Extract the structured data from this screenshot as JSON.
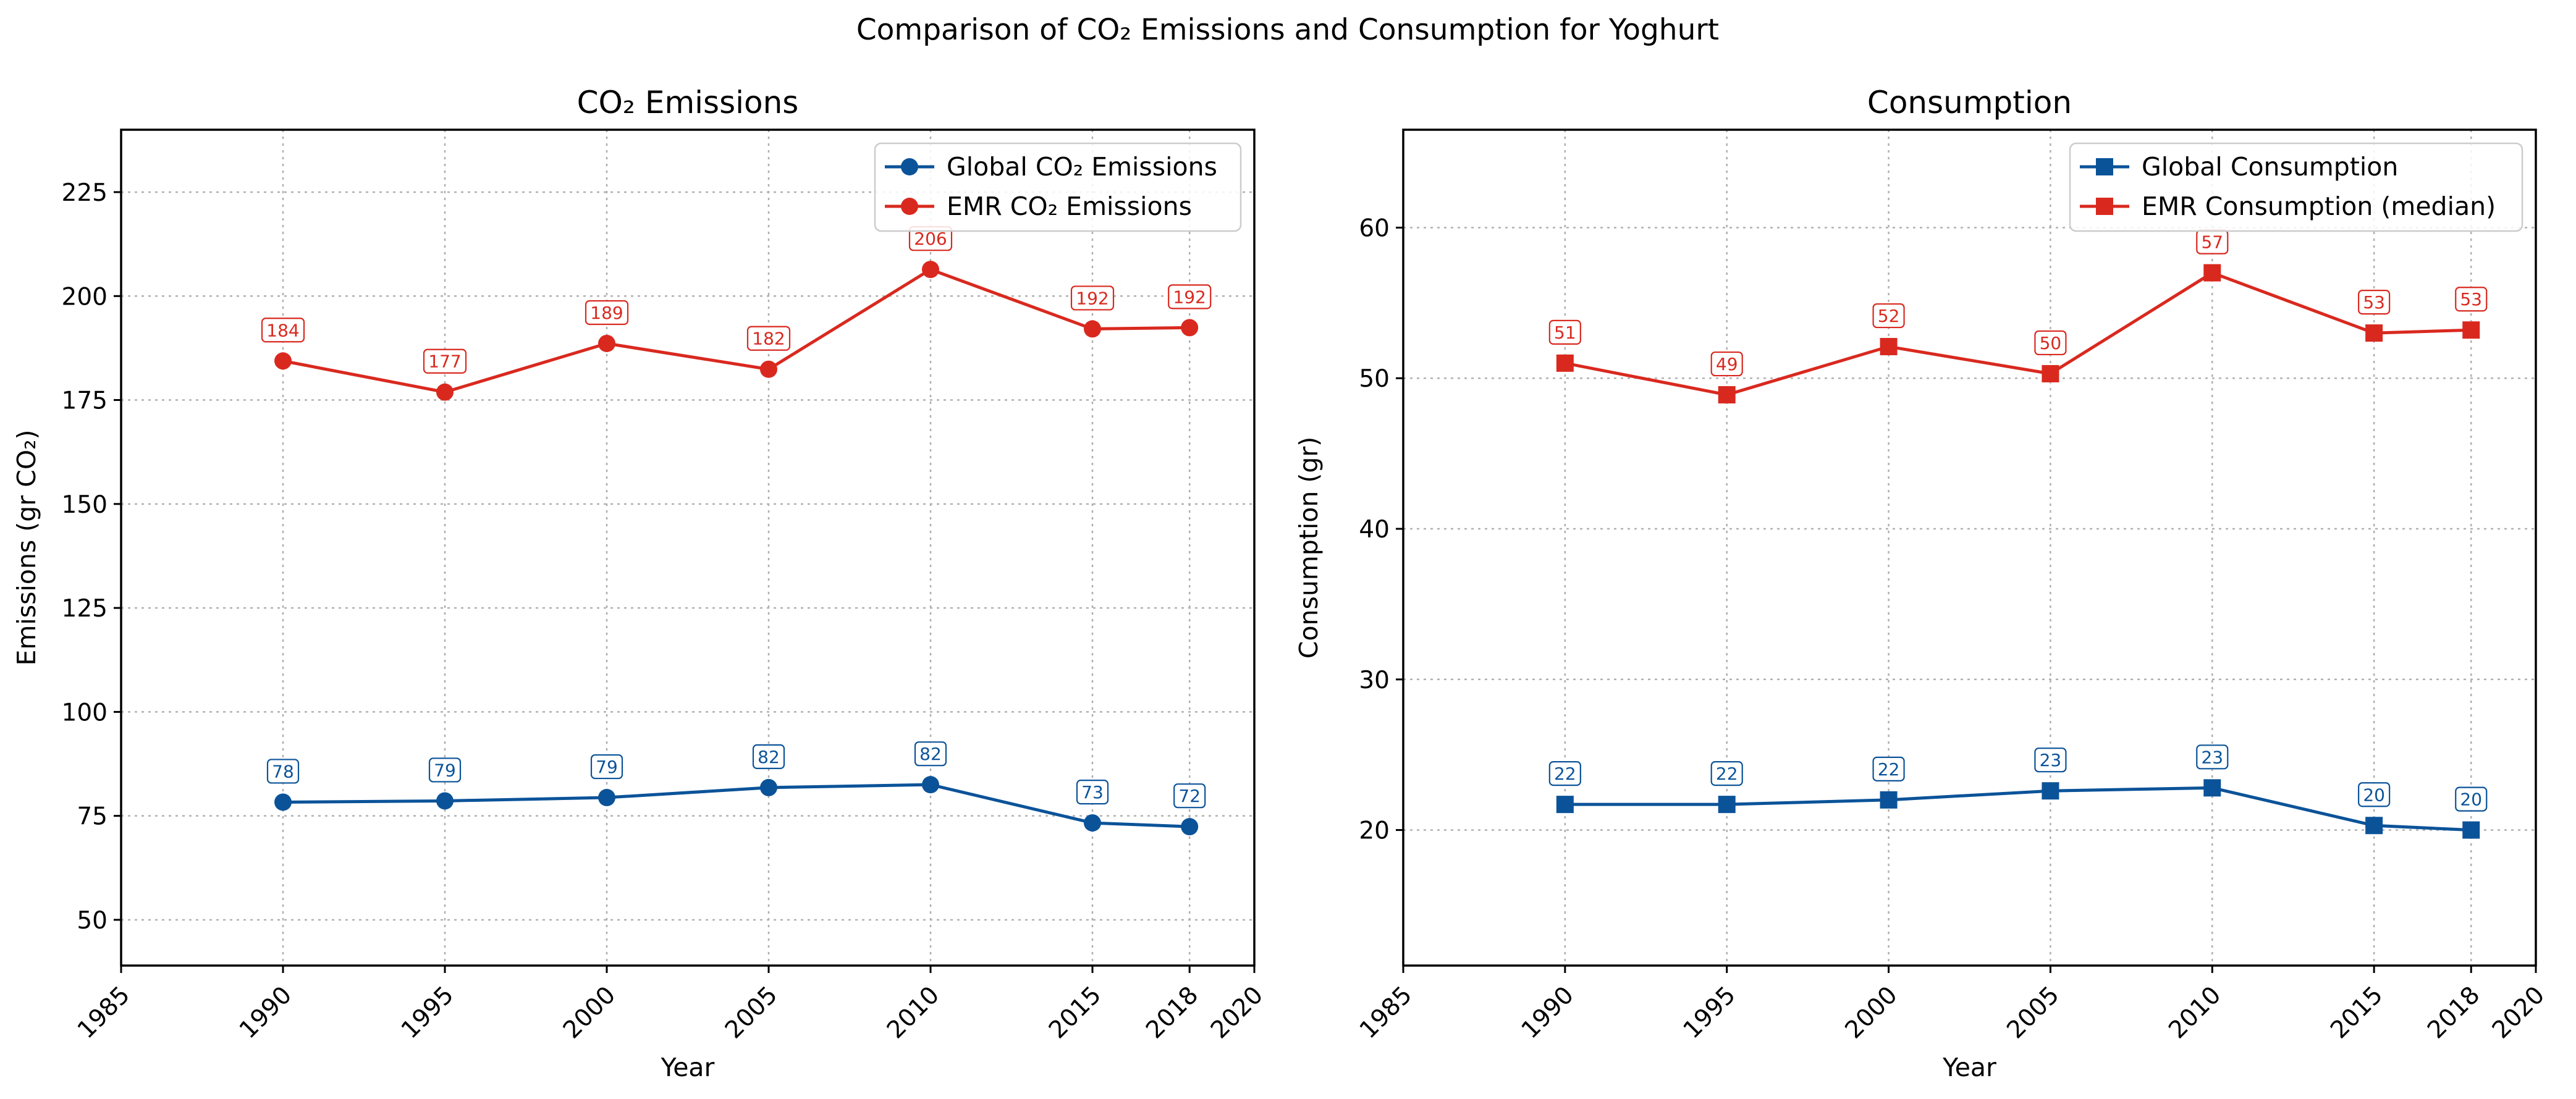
{
  "figure": {
    "title": "Comparison of CO₂ Emissions and Consumption for Yoghurt"
  },
  "colors": {
    "global": "#0b5399",
    "emr": "#d9291f"
  },
  "chart_data": [
    {
      "type": "line",
      "title": "CO₂ Emissions",
      "xlabel": "Year",
      "ylabel": "Emissions (gr CO₂)",
      "xlim": [
        1985,
        2020
      ],
      "ylim": [
        39,
        240
      ],
      "xticks": [
        1985,
        1990,
        1995,
        2000,
        2005,
        2010,
        2015,
        2018,
        2020
      ],
      "yticks": [
        50,
        75,
        100,
        125,
        150,
        175,
        200,
        225
      ],
      "grid": true,
      "legend_position": "top-right",
      "x": [
        1990,
        1995,
        2000,
        2005,
        2010,
        2015,
        2018
      ],
      "series": [
        {
          "name": "Global CO₂ Emissions",
          "marker": "circle",
          "color": "#0b5399",
          "values": [
            78.3,
            78.6,
            79.4,
            81.8,
            82.5,
            73.3,
            72.4
          ],
          "labels": [
            "78",
            "79",
            "79",
            "82",
            "82",
            "73",
            "72"
          ]
        },
        {
          "name": "EMR CO₂ Emissions",
          "marker": "circle",
          "color": "#d9291f",
          "values": [
            184.4,
            176.9,
            188.6,
            182.4,
            206.4,
            192.1,
            192.4
          ],
          "labels": [
            "184",
            "177",
            "189",
            "182",
            "206",
            "192",
            "192"
          ]
        }
      ]
    },
    {
      "type": "line",
      "title": "Consumption",
      "xlabel": "Year",
      "ylabel": "Consumption (gr)",
      "xlim": [
        1985,
        2020
      ],
      "ylim": [
        11,
        66.5
      ],
      "xticks": [
        1985,
        1990,
        1995,
        2000,
        2005,
        2010,
        2015,
        2018,
        2020
      ],
      "yticks": [
        20,
        30,
        40,
        50,
        60
      ],
      "grid": true,
      "legend_position": "top-right",
      "x": [
        1990,
        1995,
        2000,
        2005,
        2010,
        2015,
        2018
      ],
      "series": [
        {
          "name": "Global Consumption",
          "marker": "square",
          "color": "#0b5399",
          "values": [
            21.7,
            21.7,
            22.0,
            22.6,
            22.8,
            20.3,
            20.0
          ],
          "labels": [
            "22",
            "22",
            "22",
            "23",
            "23",
            "20",
            "20"
          ]
        },
        {
          "name": "EMR Consumption (median)",
          "marker": "square",
          "color": "#d9291f",
          "values": [
            51.0,
            48.9,
            52.1,
            50.3,
            57.0,
            53.0,
            53.2
          ],
          "labels": [
            "51",
            "49",
            "52",
            "50",
            "57",
            "53",
            "53"
          ]
        }
      ]
    }
  ]
}
